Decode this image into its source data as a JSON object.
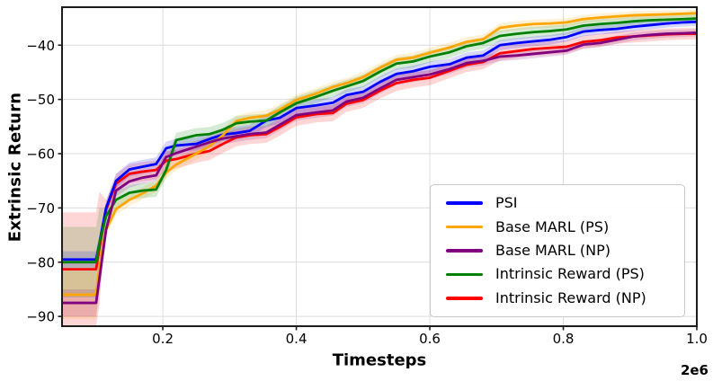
{
  "figure": {
    "xlabel": "Timesteps",
    "ylabel": "Extrinsic Return",
    "offset_label": "2e6"
  },
  "chart_data": {
    "type": "line",
    "title": "",
    "xlabel": "Timesteps",
    "ylabel": "Extrinsic Return",
    "x_offset_label": "2e6",
    "xlim": [
      0.049,
      1.0
    ],
    "ylim": [
      -91.8,
      -33.0
    ],
    "xticks": [
      0.2,
      0.4,
      0.6,
      0.8,
      1.0
    ],
    "xtick_labels": [
      "0.2",
      "0.4",
      "0.6",
      "0.8",
      "1.0"
    ],
    "yticks": [
      -40,
      -50,
      -60,
      -70,
      -80,
      -90
    ],
    "ytick_labels": [
      "−40",
      "−50",
      "−60",
      "−70",
      "−80",
      "−90"
    ],
    "grid": true,
    "legend_position": "lower right",
    "x": [
      0.05,
      0.1,
      0.105,
      0.115,
      0.13,
      0.15,
      0.17,
      0.19,
      0.205,
      0.22,
      0.25,
      0.27,
      0.29,
      0.31,
      0.33,
      0.355,
      0.375,
      0.4,
      0.43,
      0.455,
      0.475,
      0.5,
      0.525,
      0.55,
      0.575,
      0.6,
      0.63,
      0.655,
      0.68,
      0.705,
      0.73,
      0.755,
      0.78,
      0.805,
      0.83,
      0.855,
      0.88,
      0.905,
      0.93,
      0.955,
      0.98,
      1.0
    ],
    "series": [
      {
        "name": "PSI",
        "color": "#0000FF",
        "band_start": 1.5,
        "band_run": 1.0,
        "values": [
          -79.5,
          -79.5,
          -76.5,
          -70.0,
          -65.0,
          -62.9,
          -62.4,
          -61.9,
          -59.0,
          -58.5,
          -58.2,
          -57.3,
          -56.5,
          -56.2,
          -55.8,
          -53.9,
          -53.4,
          -51.6,
          -51.1,
          -50.6,
          -49.2,
          -48.6,
          -46.8,
          -45.3,
          -44.8,
          -44.0,
          -43.5,
          -42.3,
          -41.9,
          -40.0,
          -39.6,
          -39.3,
          -39.0,
          -38.5,
          -37.5,
          -37.2,
          -37.0,
          -36.6,
          -36.3,
          -36.0,
          -35.8,
          -35.7
        ]
      },
      {
        "name": "Base MARL (PS)",
        "color": "#FFA500",
        "band_start": 4.5,
        "band_run": 0.9,
        "values": [
          -86.0,
          -86.0,
          -81.0,
          -74.0,
          -70.2,
          -68.5,
          -67.3,
          -65.9,
          -63.5,
          -62.0,
          -60.0,
          -58.6,
          -56.6,
          -54.0,
          -53.4,
          -53.0,
          -51.9,
          -50.1,
          -48.9,
          -47.7,
          -47.0,
          -45.9,
          -44.2,
          -42.7,
          -42.3,
          -41.4,
          -40.4,
          -39.4,
          -38.9,
          -36.8,
          -36.4,
          -36.1,
          -36.0,
          -35.8,
          -35.2,
          -34.9,
          -34.7,
          -34.5,
          -34.4,
          -34.3,
          -34.2,
          -34.1
        ]
      },
      {
        "name": "Base MARL (NP)",
        "color": "#800080",
        "band_start": 2.5,
        "band_run": 0.9,
        "values": [
          -87.5,
          -87.5,
          -83.0,
          -74.0,
          -66.8,
          -65.1,
          -64.4,
          -64.0,
          -60.6,
          -59.9,
          -58.7,
          -57.9,
          -57.2,
          -56.8,
          -56.4,
          -56.1,
          -54.7,
          -52.9,
          -52.4,
          -52.0,
          -50.4,
          -49.7,
          -48.0,
          -46.4,
          -45.9,
          -45.4,
          -44.4,
          -43.3,
          -42.9,
          -42.1,
          -41.9,
          -41.6,
          -41.3,
          -41.0,
          -39.9,
          -39.6,
          -39.0,
          -38.4,
          -38.1,
          -37.9,
          -37.8,
          -37.7
        ]
      },
      {
        "name": "Intrinsic Reward (PS)",
        "color": "#008000",
        "band_start": 6.5,
        "band_run": 1.1,
        "values": [
          -80.0,
          -80.0,
          -76.5,
          -71.5,
          -68.5,
          -67.2,
          -66.8,
          -66.6,
          -63.0,
          -57.5,
          -56.6,
          -56.4,
          -55.6,
          -54.4,
          -54.1,
          -53.9,
          -52.4,
          -50.7,
          -49.5,
          -48.4,
          -47.6,
          -46.6,
          -44.9,
          -43.4,
          -43.0,
          -42.1,
          -41.3,
          -40.2,
          -39.6,
          -38.3,
          -37.9,
          -37.6,
          -37.4,
          -37.1,
          -36.4,
          -36.1,
          -35.9,
          -35.6,
          -35.4,
          -35.3,
          -35.2,
          -35.1
        ]
      },
      {
        "name": "Intrinsic Reward (NP)",
        "color": "#FF0000",
        "band_start": 10.5,
        "band_run": 1.4,
        "values": [
          -81.3,
          -81.3,
          -77.5,
          -70.3,
          -65.5,
          -63.7,
          -63.3,
          -63.0,
          -61.3,
          -61.0,
          -60.0,
          -59.5,
          -58.2,
          -57.0,
          -56.6,
          -56.4,
          -55.1,
          -53.3,
          -52.7,
          -52.5,
          -50.8,
          -50.1,
          -48.4,
          -47.0,
          -46.4,
          -46.0,
          -44.7,
          -43.6,
          -43.1,
          -41.5,
          -41.1,
          -40.7,
          -40.5,
          -40.3,
          -39.4,
          -39.1,
          -38.6,
          -38.4,
          -38.2,
          -38.0,
          -37.9,
          -37.9
        ]
      }
    ],
    "colors": {
      "grid": "#DCDCDC",
      "spine": "#1C1C1C",
      "background": "#FFFFFF"
    }
  }
}
